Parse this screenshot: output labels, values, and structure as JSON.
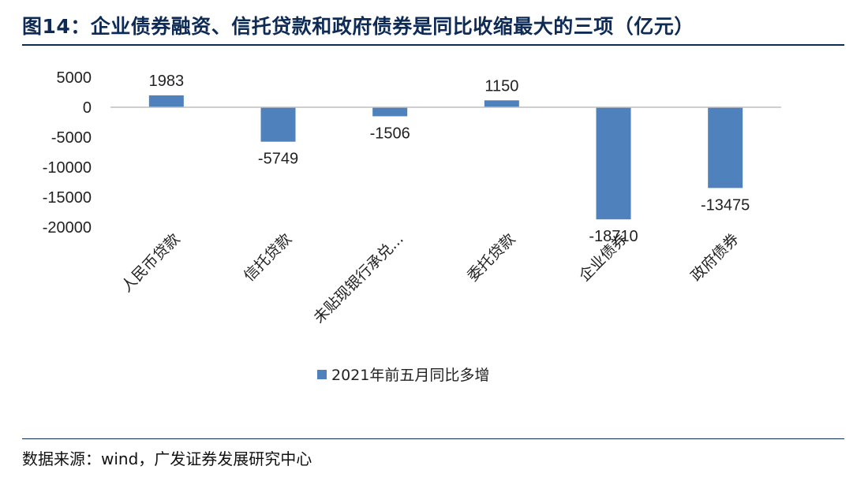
{
  "header": {
    "title": "图14：企业债券融资、信托贷款和政府债券是同比收缩最大的三项（亿元）"
  },
  "footer": {
    "source": "数据来源：wind，广发证券发展研究中心"
  },
  "chart_data": {
    "type": "bar",
    "categories": [
      "人民币贷款",
      "信托贷款",
      "未贴现银行承兑...",
      "委托贷款",
      "企业债券",
      "政府债券"
    ],
    "series": [
      {
        "name": "2021年前五月同比多增",
        "values": [
          1983,
          -5749,
          -1506,
          1150,
          -18710,
          -13475
        ],
        "color": "#4f81bd"
      }
    ],
    "ylim": [
      -20000,
      5000
    ],
    "yticks": [
      5000,
      0,
      -5000,
      -10000,
      -15000,
      -20000
    ],
    "grid": false,
    "legend": "bottom",
    "data_labels": true
  }
}
